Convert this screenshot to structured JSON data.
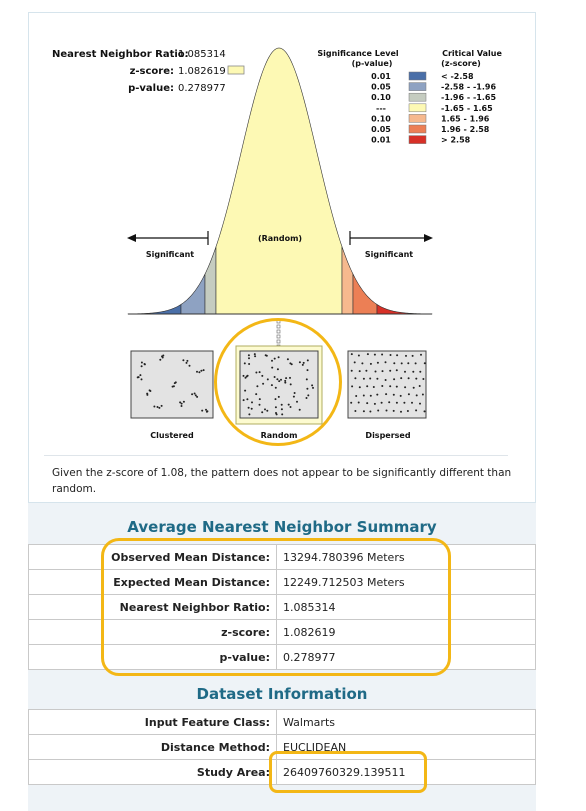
{
  "header": {
    "nn_ratio_label": "Nearest Neighbor Ratio:",
    "nn_ratio_value": "1.085314",
    "zscore_label": "z-score:",
    "zscore_value": "1.082619",
    "pvalue_label": "p-value:",
    "pvalue_value": "0.278977"
  },
  "legend": {
    "sig_title1": "Significance Level",
    "sig_title2": "(p-value)",
    "crit_title1": "Critical Value",
    "crit_title2": "(z-score)",
    "rows": [
      {
        "p": "0.01",
        "z": "< -2.58",
        "color": "#4a6fa8"
      },
      {
        "p": "0.05",
        "z": "-2.58 - -1.96",
        "color": "#8ea2c2"
      },
      {
        "p": "0.10",
        "z": "-1.96 - -1.65",
        "color": "#c5ccc0"
      },
      {
        "p": "---",
        "z": "-1.65 - 1.65",
        "color": "#fdf9b4"
      },
      {
        "p": "0.10",
        "z": "1.65 - 1.96",
        "color": "#f6b98e"
      },
      {
        "p": "0.05",
        "z": "1.96 - 2.58",
        "color": "#ec7f55"
      },
      {
        "p": "0.01",
        "z": "> 2.58",
        "color": "#d73027"
      }
    ]
  },
  "curve": {
    "left_label": "Significant",
    "center_label": "(Random)",
    "right_label": "Significant"
  },
  "patterns": {
    "clustered": "Clustered",
    "random": "Random",
    "dispersed": "Dispersed"
  },
  "caption": "Given the z-score of 1.08, the pattern does not appear to be significantly different than random.",
  "summary": {
    "title": "Average Nearest Neighbor Summary",
    "rows": [
      {
        "k": "Observed Mean Distance:",
        "v": "13294.780396 Meters"
      },
      {
        "k": "Expected Mean Distance:",
        "v": "12249.712503 Meters"
      },
      {
        "k": "Nearest Neighbor Ratio:",
        "v": "1.085314"
      },
      {
        "k": "z-score:",
        "v": "1.082619"
      },
      {
        "k": "p-value:",
        "v": "0.278977"
      }
    ]
  },
  "dataset": {
    "title": "Dataset Information",
    "rows": [
      {
        "k": "Input Feature Class:",
        "v": "Walmarts"
      },
      {
        "k": "Distance Method:",
        "v": "EUCLIDEAN"
      },
      {
        "k": "Study Area:",
        "v": "26409760329.139511"
      }
    ]
  },
  "colors": {
    "curve_fill": "#fdf9b4",
    "highlight": "#f3b716",
    "title": "#1f6a86"
  }
}
